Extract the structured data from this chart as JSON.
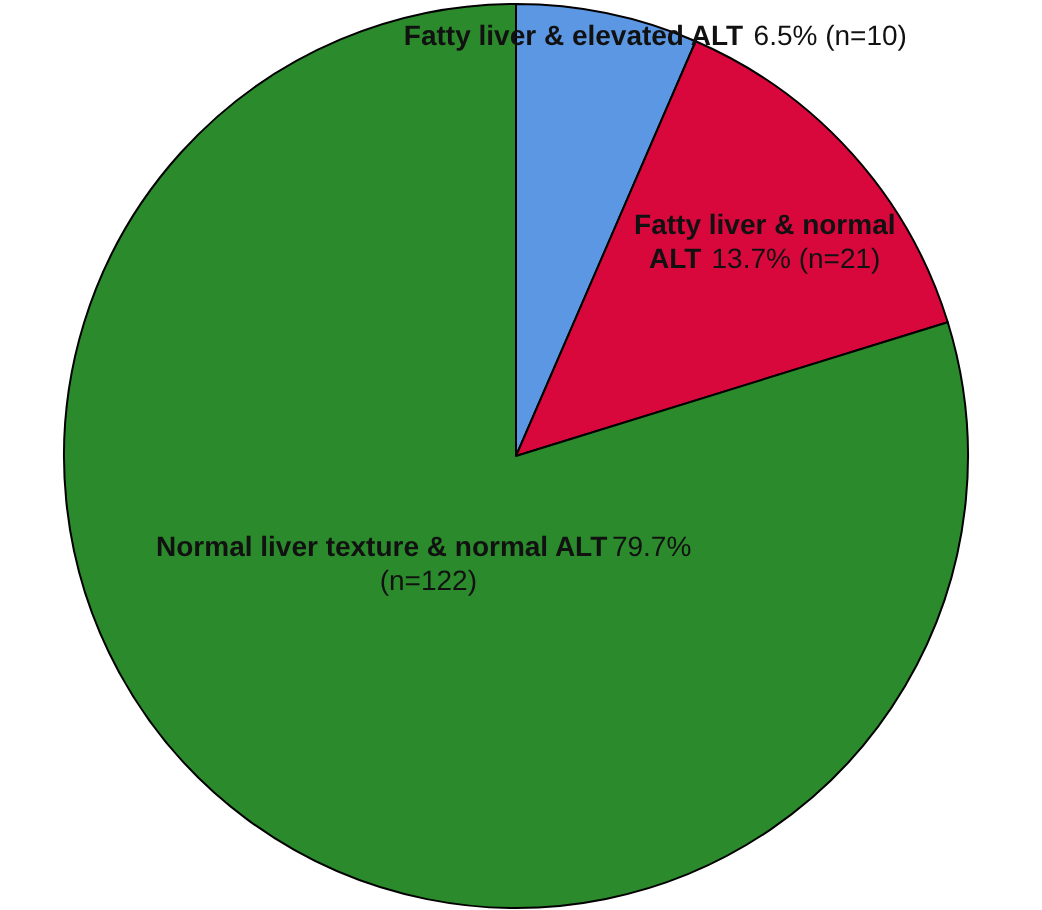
{
  "chart_data": {
    "type": "pie",
    "categories": [
      "Fatty liver & elevated ALT",
      "Fatty liver & normal ALT",
      "Normal liver texture & normal ALT"
    ],
    "values": [
      6.5,
      13.7,
      79.7
    ],
    "colors": [
      "#5b97e3",
      "#d9083c",
      "#2b8a2b"
    ],
    "value_labels": [
      "6.5% (n=10)",
      "13.7% (n=21)",
      "79.7% (n=122)"
    ],
    "legend": false
  }
}
